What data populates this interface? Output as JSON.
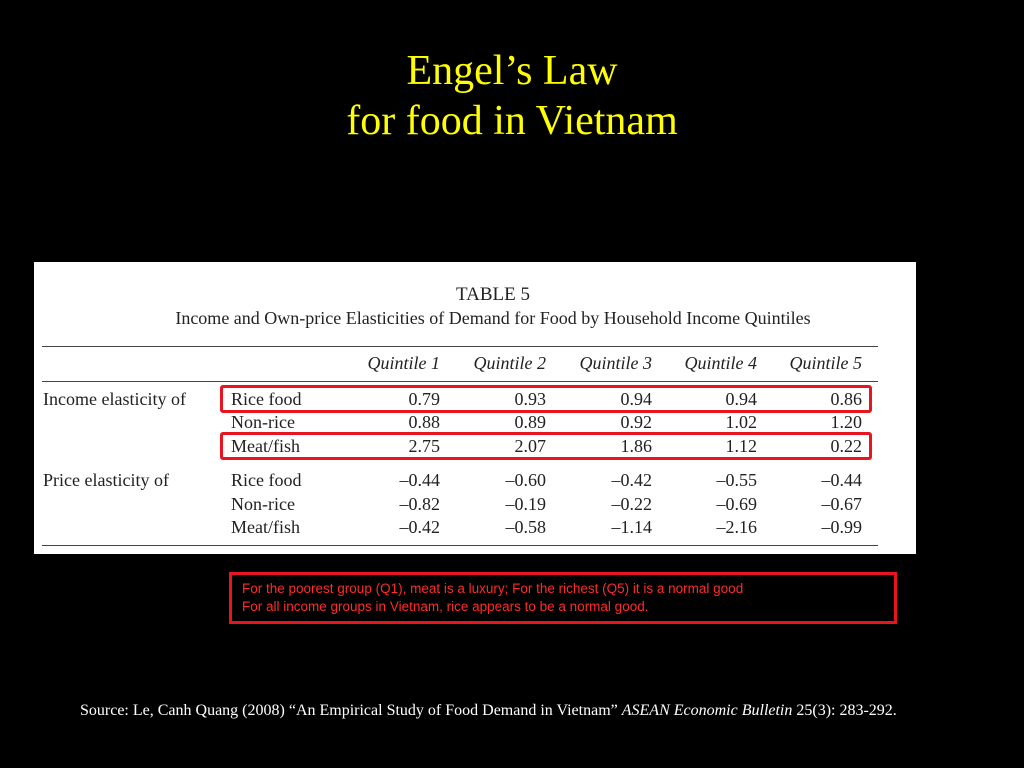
{
  "slide": {
    "title_line1": "Engel’s Law",
    "title_line2": "for food in Vietnam"
  },
  "table": {
    "label": "TABLE 5",
    "caption": "Income and Own-price Elasticities of Demand for Food by Household Income Quintiles",
    "columns": [
      "Quintile 1",
      "Quintile 2",
      "Quintile 3",
      "Quintile 4",
      "Quintile 5"
    ],
    "groups": [
      {
        "label": "Income elasticity of",
        "rows": [
          {
            "item": "Rice food",
            "values": [
              "0.79",
              "0.93",
              "0.94",
              "0.94",
              "0.86"
            ],
            "highlighted": true
          },
          {
            "item": "Non-rice",
            "values": [
              "0.88",
              "0.89",
              "0.92",
              "1.02",
              "1.20"
            ],
            "highlighted": false
          },
          {
            "item": "Meat/fish",
            "values": [
              "2.75",
              "2.07",
              "1.86",
              "1.12",
              "0.22"
            ],
            "highlighted": true
          }
        ]
      },
      {
        "label": "Price elasticity of",
        "rows": [
          {
            "item": "Rice food",
            "values": [
              "–0.44",
              "–0.60",
              "–0.42",
              "–0.55",
              "–0.44"
            ],
            "highlighted": false
          },
          {
            "item": "Non-rice",
            "values": [
              "–0.82",
              "–0.19",
              "–0.22",
              "–0.69",
              "–0.67"
            ],
            "highlighted": false
          },
          {
            "item": "Meat/fish",
            "values": [
              "–0.42",
              "–0.58",
              "–1.14",
              "–2.16",
              "–0.99"
            ],
            "highlighted": false
          }
        ]
      }
    ]
  },
  "note": {
    "line1": "For the poorest group (Q1), meat is a luxury; For  the richest (Q5) it is a normal good",
    "line2": "For all income groups in Vietnam, rice appears to be a normal good."
  },
  "source": {
    "prefix": "Source: Le, Canh Quang (2008) “An Empirical Study of Food Demand in Vietnam” ",
    "journal": "ASEAN Economic Bulletin",
    "suffix": " 25(3): 283-292."
  },
  "colors": {
    "background": "#000000",
    "title": "#ffff00",
    "highlight": "#e8141e",
    "note_text": "#ff2a2a"
  }
}
